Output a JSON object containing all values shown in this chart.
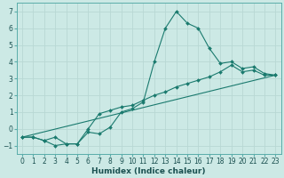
{
  "xlabel": "Humidex (Indice chaleur)",
  "background_color": "#cce9e5",
  "grid_color": "#b8d8d4",
  "line_color": "#1a7a6e",
  "xlim": [
    -0.5,
    23.5
  ],
  "ylim": [
    -1.5,
    7.5
  ],
  "xticks": [
    0,
    1,
    2,
    3,
    4,
    5,
    6,
    7,
    8,
    9,
    10,
    11,
    12,
    13,
    14,
    15,
    16,
    17,
    18,
    19,
    20,
    21,
    22,
    23
  ],
  "yticks": [
    -1,
    0,
    1,
    2,
    3,
    4,
    5,
    6,
    7
  ],
  "curve1_x": [
    0,
    1,
    2,
    3,
    4,
    5,
    6,
    7,
    8,
    9,
    10,
    11,
    12,
    13,
    14,
    15,
    16,
    17,
    18,
    19,
    20,
    21,
    22,
    23
  ],
  "curve1_y": [
    -0.5,
    -0.5,
    -0.7,
    -1.0,
    -0.9,
    -0.9,
    -0.2,
    -0.3,
    0.1,
    1.0,
    1.2,
    1.6,
    4.0,
    6.0,
    7.0,
    6.3,
    6.0,
    4.8,
    3.9,
    4.0,
    3.6,
    3.7,
    3.3,
    3.2
  ],
  "curve2_x": [
    0,
    1,
    2,
    3,
    4,
    5,
    6,
    7,
    8,
    9,
    10,
    11,
    12,
    13,
    14,
    15,
    16,
    17,
    18,
    19,
    20,
    21,
    22,
    23
  ],
  "curve2_y": [
    -0.5,
    -0.5,
    -0.7,
    -0.5,
    -0.9,
    -0.9,
    0.0,
    0.9,
    1.1,
    1.3,
    1.4,
    1.7,
    2.0,
    2.2,
    2.5,
    2.7,
    2.9,
    3.1,
    3.4,
    3.8,
    3.4,
    3.5,
    3.2,
    3.2
  ],
  "curve3_x": [
    0,
    23
  ],
  "curve3_y": [
    -0.5,
    3.2
  ],
  "xlabel_fontsize": 6.5,
  "tick_fontsize": 5.5
}
